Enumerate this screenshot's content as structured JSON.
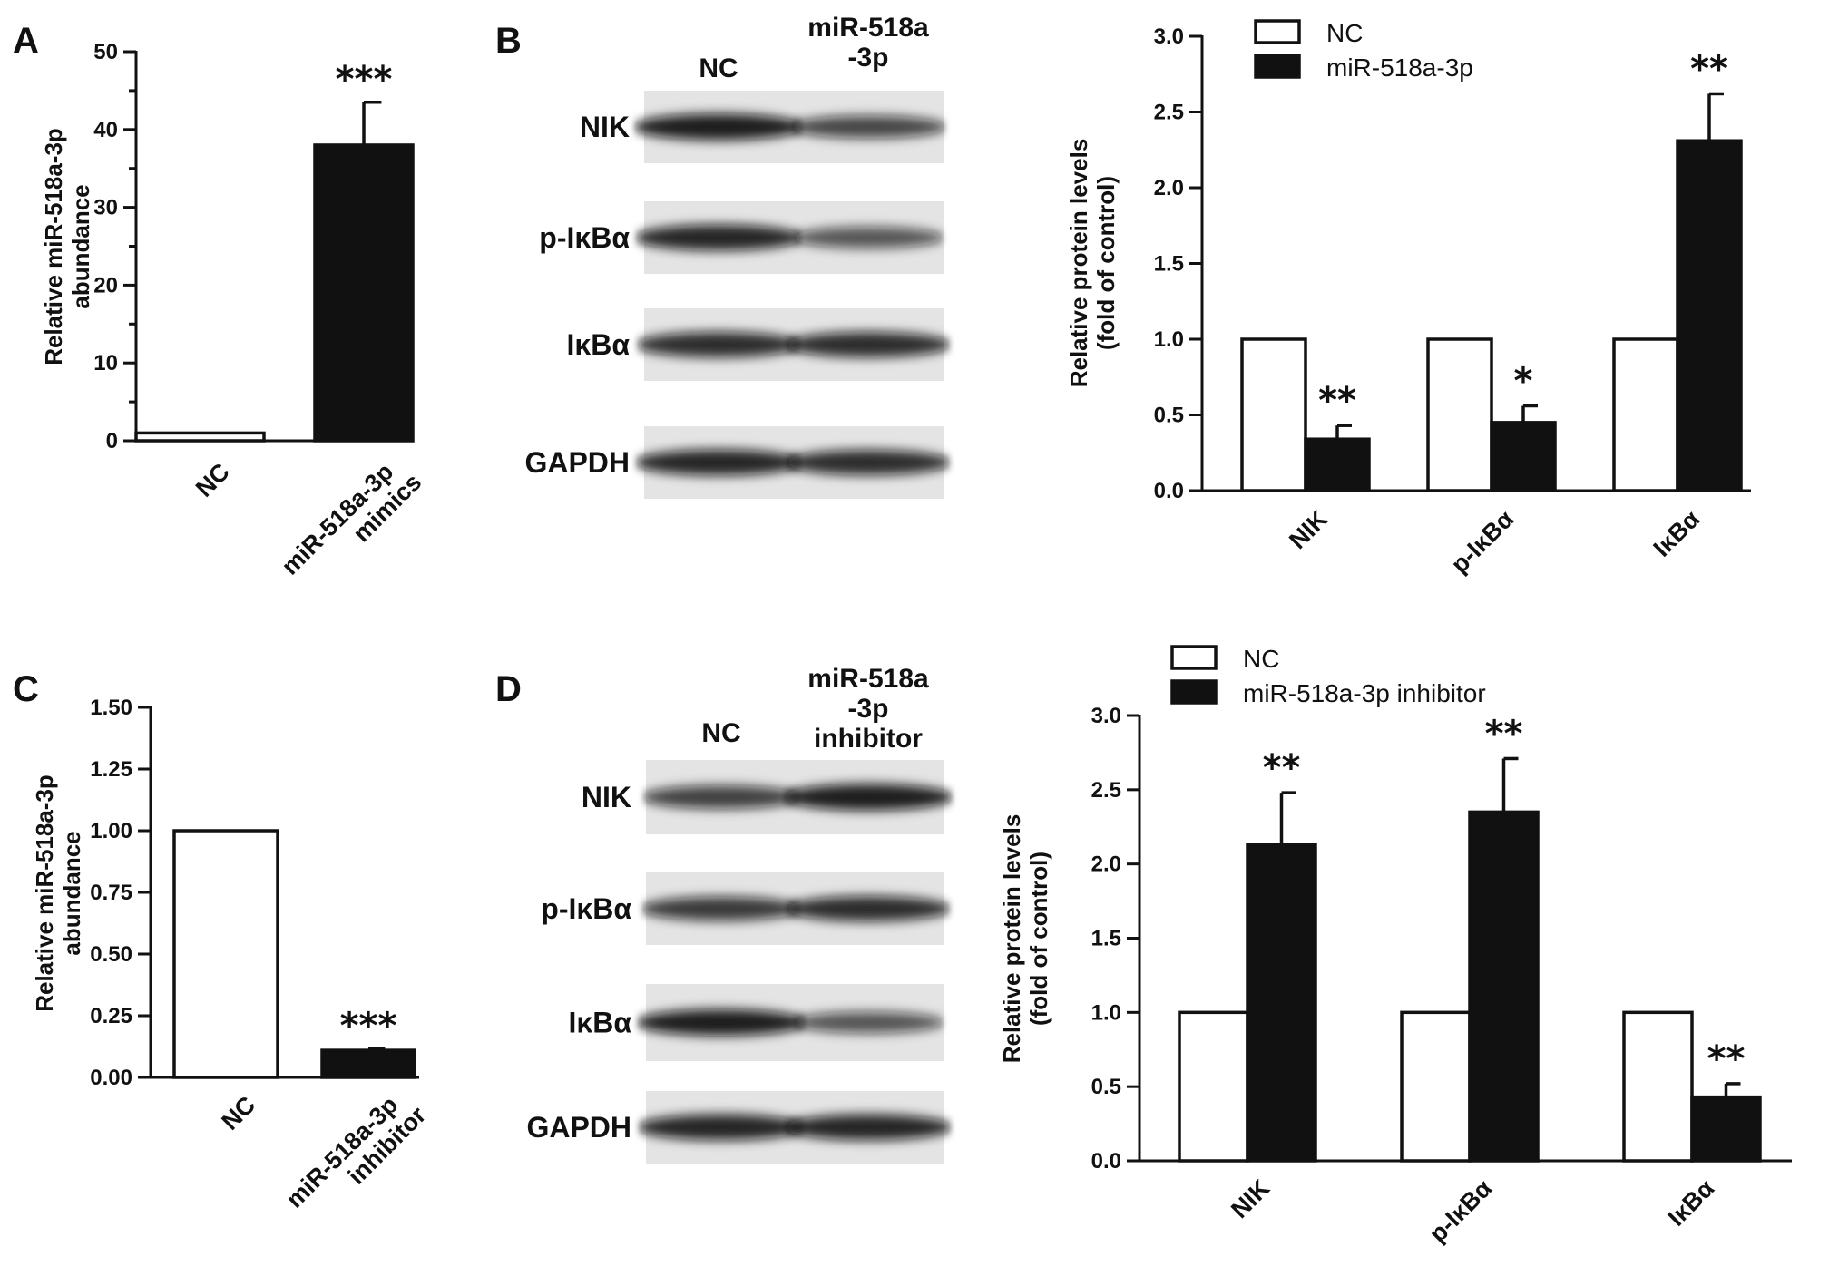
{
  "panels": [
    {
      "letter": "A"
    },
    {
      "letter": "B"
    },
    {
      "letter": "C"
    },
    {
      "letter": "D"
    }
  ],
  "blots": {
    "B": {
      "header": [
        "NC",
        [
          "miR-518a",
          "-3p"
        ]
      ],
      "rows": [
        "NIK",
        "p-IκBα",
        "IκBα",
        "GAPDH"
      ],
      "intensity": [
        [
          0.95,
          0.65
        ],
        [
          0.9,
          0.55
        ],
        [
          0.85,
          0.85
        ],
        [
          0.9,
          0.85
        ]
      ]
    },
    "D": {
      "header": [
        "NC",
        [
          "miR-518a",
          "-3p",
          "inhibitor"
        ]
      ],
      "rows": [
        "NIK",
        "p-IκBα",
        "IκBα",
        "GAPDH"
      ],
      "intensity": [
        [
          0.7,
          0.95
        ],
        [
          0.75,
          0.85
        ],
        [
          0.95,
          0.55
        ],
        [
          0.9,
          0.9
        ]
      ]
    }
  },
  "chart_data": [
    {
      "id": "A",
      "type": "bar",
      "categories": [
        [
          "NC"
        ],
        [
          "miR-518a-3p",
          "mimics"
        ]
      ],
      "values": [
        1,
        38
      ],
      "errors": [
        0,
        5.5
      ],
      "fills": [
        "#ffffff",
        "#111111"
      ],
      "significance": [
        "",
        "***"
      ],
      "ylabel": [
        "Relative miR-518a-3p",
        "abundance"
      ],
      "ylim": [
        0,
        50
      ],
      "yticks": [
        "0",
        "10",
        "20",
        "30",
        "40",
        "50"
      ],
      "ytick_values": [
        0,
        10,
        20,
        30,
        40,
        50
      ],
      "minor_ticks": true
    },
    {
      "id": "C",
      "type": "bar",
      "categories": [
        [
          "NC"
        ],
        [
          "miR-518a-3p",
          "inhibitor"
        ]
      ],
      "values": [
        1.0,
        0.11
      ],
      "errors": [
        0,
        0.005
      ],
      "fills": [
        "#ffffff",
        "#111111"
      ],
      "significance": [
        "",
        "***"
      ],
      "ylabel": [
        "Relative miR-518a-3p",
        "abundance"
      ],
      "ylim": [
        0,
        1.5
      ],
      "yticks": [
        "0.00",
        "0.25",
        "0.50",
        "0.75",
        "1.00",
        "1.25",
        "1.50"
      ],
      "ytick_values": [
        0,
        0.25,
        0.5,
        0.75,
        1.0,
        1.25,
        1.5
      ],
      "minor_ticks": false
    },
    {
      "id": "B-chart",
      "type": "bar",
      "categories": [
        "NIK",
        "p-IκBα",
        "IκBα"
      ],
      "series": [
        {
          "name": "NC",
          "values": [
            1.0,
            1.0,
            1.0
          ],
          "errors": [
            0,
            0,
            0
          ],
          "fill": "#ffffff",
          "significance": [
            "",
            "",
            ""
          ]
        },
        {
          "name": "miR-518a-3p",
          "values": [
            0.34,
            0.45,
            2.31
          ],
          "errors": [
            0.09,
            0.11,
            0.31
          ],
          "fill": "#111111",
          "significance": [
            "**",
            "*",
            "**"
          ]
        }
      ],
      "ylabel": [
        "Relative protein levels",
        "(fold of control)"
      ],
      "ylim": [
        0,
        3.0
      ],
      "yticks": [
        "0.0",
        "0.5",
        "1.0",
        "1.5",
        "2.0",
        "2.5",
        "3.0"
      ],
      "ytick_values": [
        0,
        0.5,
        1.0,
        1.5,
        2.0,
        2.5,
        3.0
      ],
      "legend": "top-left"
    },
    {
      "id": "D-chart",
      "type": "bar",
      "categories": [
        "NIK",
        "p-IκBα",
        "IκBα"
      ],
      "series": [
        {
          "name": "NC",
          "values": [
            1.0,
            1.0,
            1.0
          ],
          "errors": [
            0,
            0,
            0
          ],
          "fill": "#ffffff",
          "significance": [
            "",
            "",
            ""
          ]
        },
        {
          "name": "miR-518a-3p inhibitor",
          "values": [
            2.13,
            2.35,
            0.43
          ],
          "errors": [
            0.35,
            0.36,
            0.09
          ],
          "fill": "#111111",
          "significance": [
            "**",
            "**",
            "**"
          ]
        }
      ],
      "ylabel": [
        "Relative protein levels",
        "(fold of control)"
      ],
      "ylim": [
        0,
        3.0
      ],
      "yticks": [
        "0.0",
        "0.5",
        "1.0",
        "1.5",
        "2.0",
        "2.5",
        "3.0"
      ],
      "ytick_values": [
        0,
        0.5,
        1.0,
        1.5,
        2.0,
        2.5,
        3.0
      ],
      "legend": "top-left"
    }
  ]
}
